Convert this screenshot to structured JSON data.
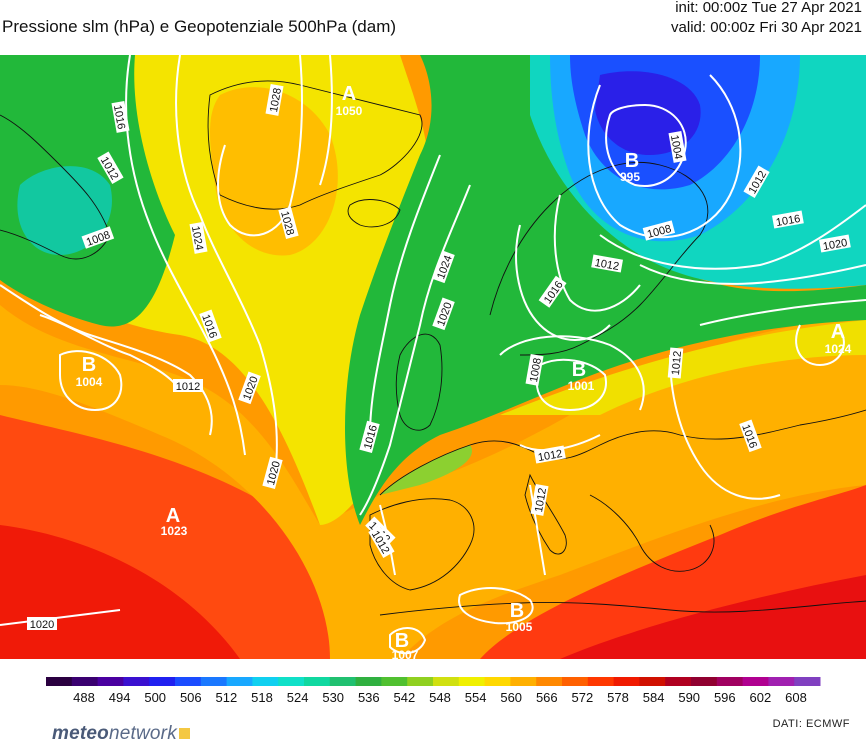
{
  "header": {
    "title": "Pressione slm (hPa) e Geopotenziale 500hPa (dam)",
    "init": "init: 00:00z Tue 27 Apr 2021",
    "valid": "valid: 00:00z Fri 30 Apr 2021"
  },
  "pressure_centers": [
    {
      "type": "A",
      "value": "1050"
    },
    {
      "type": "B",
      "value": "995"
    },
    {
      "type": "B",
      "value": "1004"
    },
    {
      "type": "A",
      "value": "1024"
    },
    {
      "type": "B",
      "value": "1001"
    },
    {
      "type": "A",
      "value": "1023"
    },
    {
      "type": "B",
      "value": "1005"
    },
    {
      "type": "B",
      "value": "1007"
    }
  ],
  "isobar_labels": [
    "1016",
    "1012",
    "1008",
    "1028",
    "1028",
    "1024",
    "1016",
    "1012",
    "1020",
    "1020",
    "1024",
    "1020",
    "1016",
    "1012",
    "1016",
    "1012",
    "1004",
    "1008",
    "1012",
    "1016",
    "1020",
    "1012",
    "1016",
    "1008",
    "1012",
    "1012",
    "1012",
    "1020"
  ],
  "colorbar": {
    "ticks": [
      "488",
      "494",
      "500",
      "506",
      "512",
      "518",
      "524",
      "530",
      "536",
      "542",
      "548",
      "554",
      "560",
      "566",
      "572",
      "578",
      "584",
      "590",
      "596",
      "602",
      "608"
    ],
    "colors": [
      "#2a0040",
      "#3a0070",
      "#4a00a0",
      "#3a10d0",
      "#2020f0",
      "#1a4cff",
      "#1a78ff",
      "#18a8ff",
      "#10d0f0",
      "#10e0c8",
      "#10d8a0",
      "#20c070",
      "#30b040",
      "#50c030",
      "#90d020",
      "#d0e010",
      "#f0f000",
      "#ffd800",
      "#ffb000",
      "#ff8800",
      "#ff6000",
      "#ff3800",
      "#f01a00",
      "#d01000",
      "#b00020",
      "#900030",
      "#a00060",
      "#b00090",
      "#a020b0",
      "#8040c0"
    ]
  },
  "footer": {
    "brand_bold": "meteo",
    "brand_thin": "network",
    "credit": "DATI:  ECMWF"
  }
}
